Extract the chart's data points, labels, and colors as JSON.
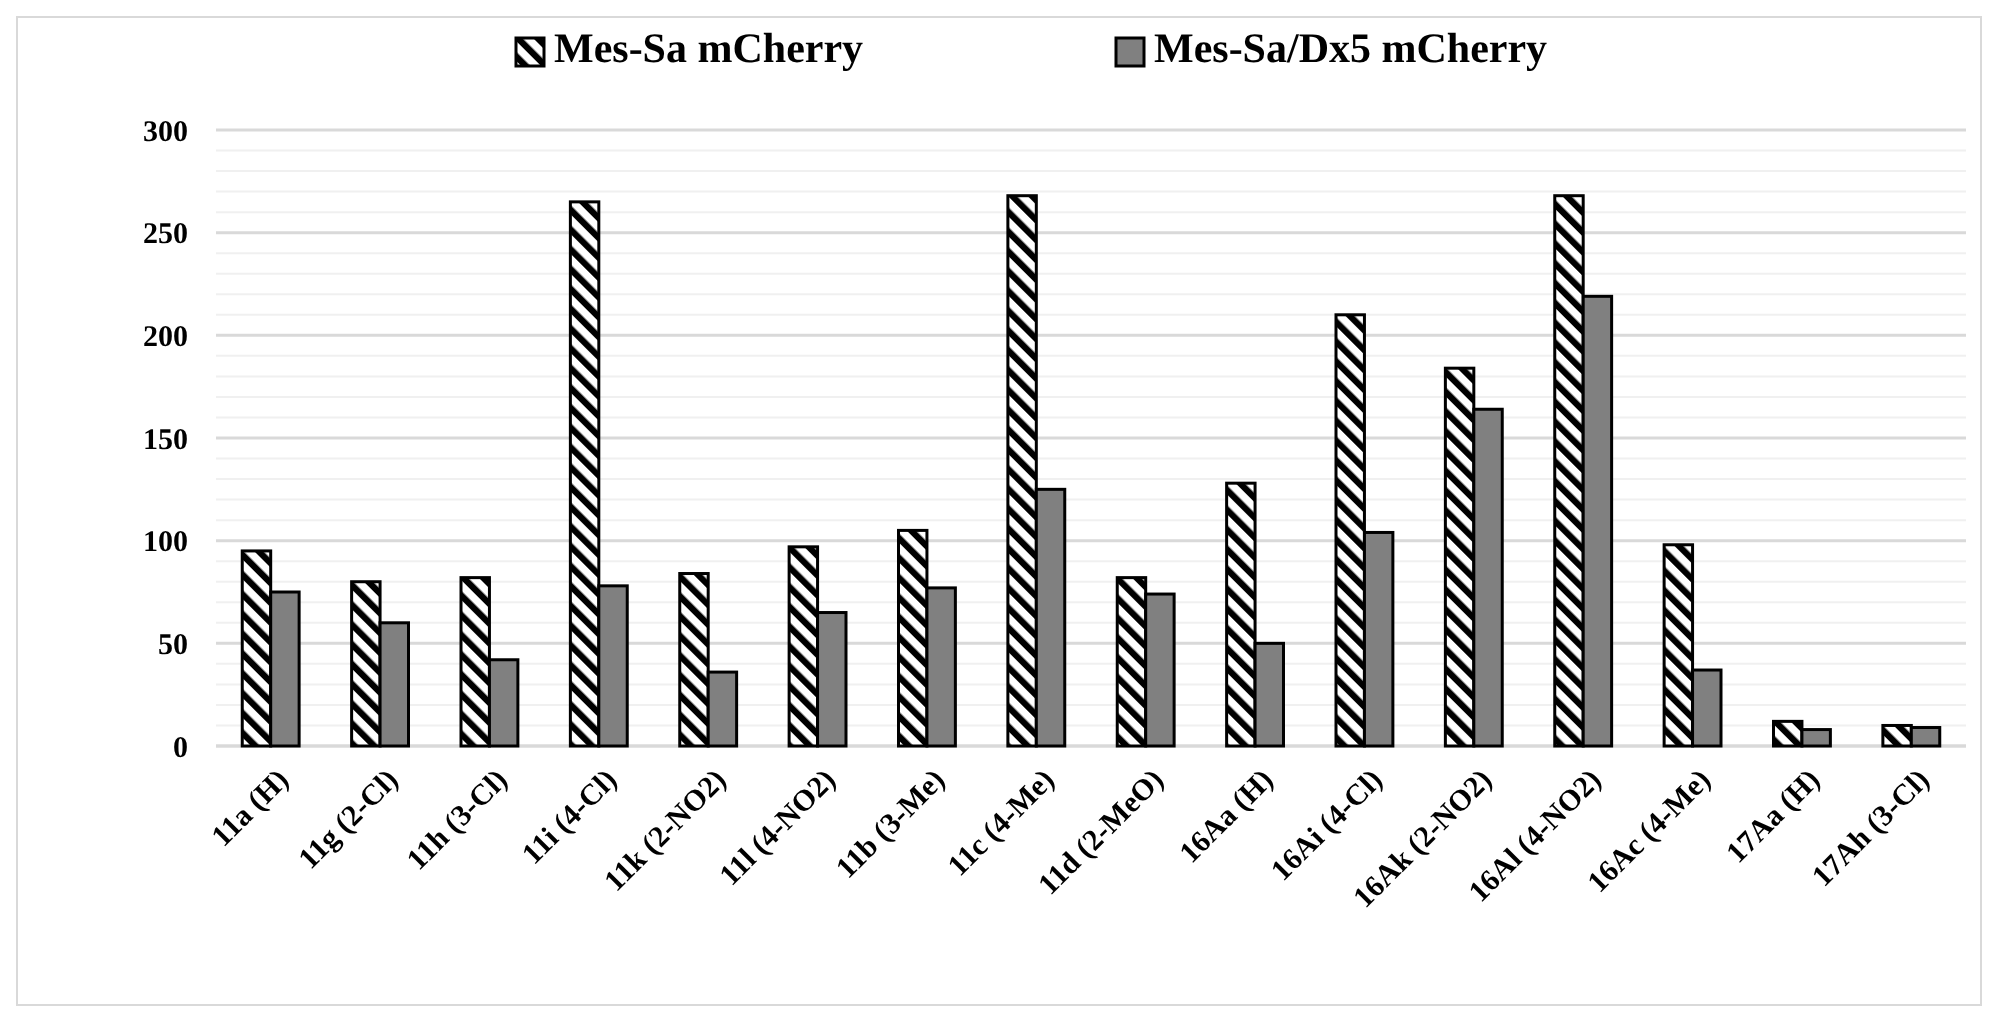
{
  "chart_data": {
    "type": "bar",
    "categories": [
      "11a (H)",
      "11g (2-Cl)",
      "11h (3-Cl)",
      "11i (4-Cl)",
      "11k (2-NO2)",
      "11l (4-NO2)",
      "11b (3-Me)",
      "11c (4-Me)",
      "11d (2-MeO)",
      "16Aa (H)",
      "16Ai (4-Cl)",
      "16Ak (2-NO2)",
      "16Al (4-NO2)",
      "16Ac (4-Me)",
      "17Aa (H)",
      "17Ah (3-Cl)"
    ],
    "series": [
      {
        "name": "Mes-Sa mCherry",
        "color": "#000000",
        "values": [
          95,
          80,
          82,
          265,
          84,
          97,
          105,
          268,
          82,
          128,
          210,
          184,
          268,
          98,
          12,
          10
        ]
      },
      {
        "name": "Mes-Sa/Dx5 mCherry",
        "color": "#808080",
        "values": [
          75,
          60,
          42,
          78,
          36,
          65,
          77,
          125,
          74,
          50,
          104,
          164,
          219,
          37,
          8,
          9
        ]
      }
    ],
    "ylim": [
      0,
      300
    ],
    "yticks": [
      0,
      {
        "value": 10,
        "label": null
      },
      {
        "value": 20,
        "label": null
      },
      {
        "value": 30,
        "label": null
      },
      {
        "value": 40,
        "label": null
      },
      50,
      {
        "value": 60,
        "label": null
      },
      {
        "value": 70,
        "label": null
      },
      {
        "value": 80,
        "label": null
      },
      {
        "value": 90,
        "label": null
      },
      100,
      {
        "value": 110,
        "label": null
      },
      {
        "value": 120,
        "label": null
      },
      {
        "value": 130,
        "label": null
      },
      {
        "value": 140,
        "label": null
      },
      150,
      {
        "value": 160,
        "label": null
      },
      {
        "value": 170,
        "label": null
      },
      {
        "value": 180,
        "label": null
      },
      {
        "value": 190,
        "label": null
      },
      200,
      {
        "value": 210,
        "label": null
      },
      {
        "value": 220,
        "label": null
      },
      {
        "value": 230,
        "label": null
      },
      {
        "value": 240,
        "label": null
      },
      250,
      {
        "value": 260,
        "label": null
      },
      {
        "value": 270,
        "label": null
      },
      {
        "value": 280,
        "label": null
      },
      {
        "value": 290,
        "label": null
      },
      300
    ],
    "grid": "y",
    "legend": "top"
  }
}
